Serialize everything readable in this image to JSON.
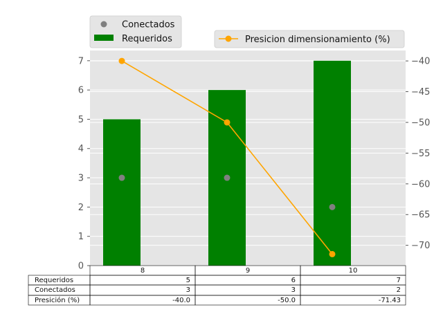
{
  "chart_data": {
    "type": "bar",
    "categories": [
      "8",
      "9",
      "10"
    ],
    "series": [
      {
        "name": "Requeridos",
        "kind": "bar",
        "axis": "left",
        "values": [
          5,
          6,
          7
        ],
        "color": "#008000"
      },
      {
        "name": "Conectados",
        "kind": "scatter",
        "axis": "left",
        "values": [
          3,
          3,
          2
        ],
        "color": "#808080"
      },
      {
        "name": "Presicion dimensionamiento (%)",
        "kind": "line",
        "axis": "right",
        "values": [
          -40.0,
          -50.0,
          -71.43
        ],
        "color": "#FFA500"
      }
    ],
    "y_left": {
      "ylim": [
        0,
        7.35
      ],
      "ticks": [
        "0",
        "1",
        "2",
        "3",
        "4",
        "5",
        "6",
        "7"
      ]
    },
    "y_right": {
      "ylim": [
        -73.3,
        -38.3
      ],
      "ticks": [
        "−70",
        "−65",
        "−60",
        "−55",
        "−50",
        "−45",
        "−40"
      ]
    },
    "grid": true,
    "background": "#E5E5E5",
    "legend_left": {
      "placement": "above-left",
      "entries": [
        "Conectados",
        "Requeridos"
      ]
    },
    "legend_right": {
      "placement": "above-right",
      "entries": [
        "Presicion dimensionamiento (%)"
      ]
    },
    "table": {
      "col_labels": [
        "8",
        "9",
        "10"
      ],
      "rows": [
        {
          "label": "Requeridos",
          "cells": [
            "5",
            "6",
            "7"
          ]
        },
        {
          "label": "Conectados",
          "cells": [
            "3",
            "3",
            "2"
          ]
        },
        {
          "label": "Presición (%)",
          "cells": [
            "-40.0",
            "-50.0",
            "-71.43"
          ]
        }
      ]
    }
  }
}
